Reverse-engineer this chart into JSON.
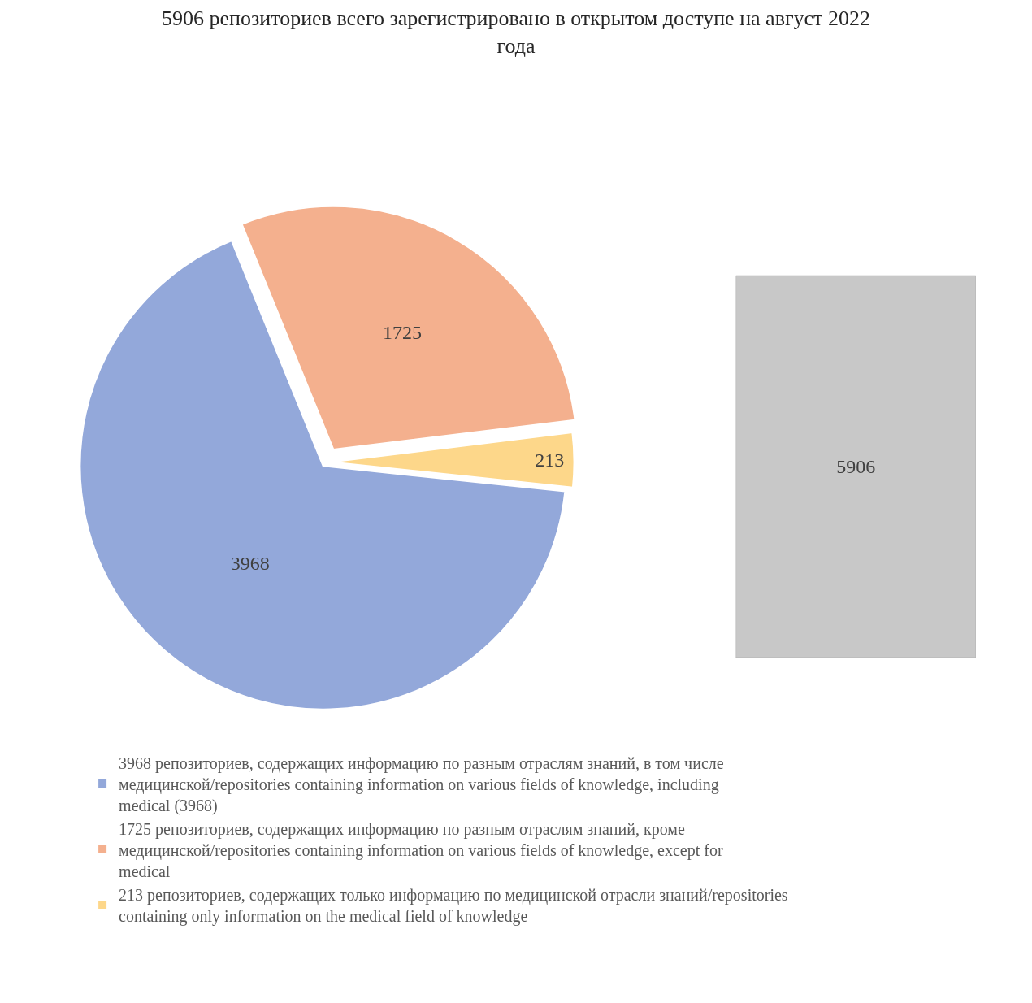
{
  "chart_data": [
    {
      "type": "pie",
      "title": "5906 репозиториев всего зарегистрировано в открытом доступе на август 2022 года",
      "categories": [
        "3968 репозиториев, содержащих информацию по разным отраслям знаний, в том числе медицинской/repositories containing information on various fields of knowledge, including medical (3968)",
        "1725 репозиториев, содержащих информацию по разным отраслям знаний, кроме медицинской/repositories containing information on various fields of knowledge, except for medical",
        "213 репозиториев, содержащих только информацию по медицинской отрасли знаний/repositories containing only information on the medical field of knowledge"
      ],
      "values": [
        3968,
        1725,
        213
      ],
      "colors": [
        "#93a8da",
        "#f4b08e",
        "#fdd78a"
      ],
      "data_labels": true,
      "legend": "bottom"
    },
    {
      "type": "other",
      "categories": [
        null
      ],
      "values": [
        5906
      ],
      "color": "#c8c8c8",
      "data_labels": true
    }
  ]
}
